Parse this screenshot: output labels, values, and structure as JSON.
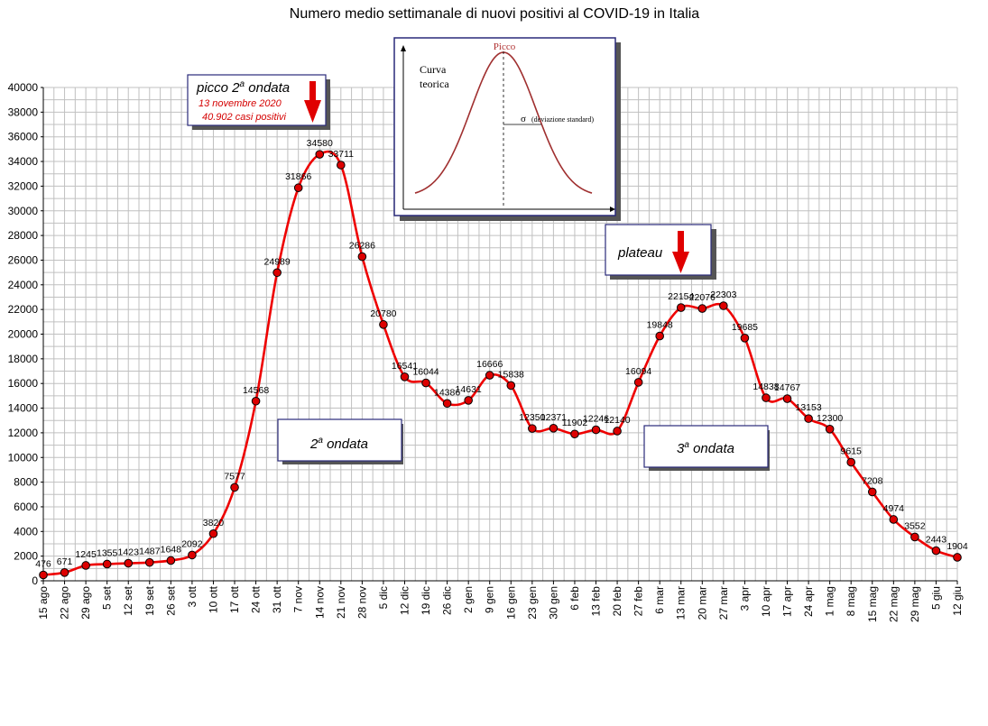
{
  "chart_data": {
    "type": "line",
    "title": "Numero medio settimanale di nuovi positivi al COVID-19 in Italia",
    "xlabel": "",
    "ylabel": "",
    "ylim": [
      0,
      40000
    ],
    "yticks": [
      0,
      2000,
      4000,
      6000,
      8000,
      10000,
      12000,
      14000,
      16000,
      18000,
      20000,
      22000,
      24000,
      26000,
      28000,
      30000,
      32000,
      34000,
      36000,
      38000,
      40000
    ],
    "grid": true,
    "categories": [
      "15 ago",
      "22 ago",
      "29 ago",
      "5 set",
      "12 set",
      "19 set",
      "26 set",
      "3 ott",
      "10 ott",
      "17 ott",
      "24 ott",
      "31 ott",
      "7 nov",
      "14 nov",
      "21 nov",
      "28 nov",
      "5 dic",
      "12 dic",
      "19 dic",
      "26 dic",
      "2 gen",
      "9 gen",
      "16 gen",
      "23 gen",
      "30 gen",
      "6 feb",
      "13 feb",
      "20 feb",
      "27 feb",
      "6 mar",
      "13 mar",
      "20 mar",
      "27 mar",
      "3 apr",
      "10 apr",
      "17 apr",
      "24 apr",
      "1 mag",
      "8 mag",
      "15 mag",
      "22 mag",
      "29 mag",
      "5 giu",
      "12 giu"
    ],
    "series": [
      {
        "color": "#ee0000",
        "values": [
          476,
          671,
          1245,
          1355,
          1423,
          1487,
          1648,
          2092,
          3820,
          7577,
          14568,
          24989,
          31866,
          34580,
          33711,
          26286,
          20780,
          16541,
          16044,
          14386,
          14631,
          16666,
          15838,
          12350,
          12371,
          11902,
          12246,
          12140,
          16094,
          19848,
          22154,
          22076,
          22303,
          19685,
          14838,
          14767,
          13153,
          12300,
          9615,
          7208,
          4974,
          3552,
          2443,
          1904
        ],
        "labels": [
          "476",
          "671",
          "1245",
          "1355",
          "1423",
          "1487",
          "1648",
          "2092",
          "3820",
          "7577",
          "14568",
          "24989",
          "31866",
          "34580",
          "33711",
          "26286",
          "20780",
          "16541",
          "16044",
          "14386",
          "14631",
          "16666",
          "15838",
          "12350",
          "12371",
          "11902",
          "12246",
          "12140",
          "16094",
          "19848",
          "22154",
          "22076",
          "22303",
          "19685",
          "14838",
          "14767",
          "13153",
          "12300",
          "9615",
          "7208",
          "4974",
          "3552",
          "2443",
          "1904"
        ]
      }
    ],
    "annotations": {
      "peak_box": {
        "title_main": "picco 2",
        "title_sup": "a",
        "title_rest": " ondata",
        "line1": "13 novembre 2020",
        "line2": "40.902 casi positivi"
      },
      "wave2_box": {
        "main": "2",
        "sup": "a",
        "rest": " ondata"
      },
      "wave3_box": {
        "main": "3",
        "sup": "a",
        "rest": " ondata"
      },
      "plateau_box": {
        "text": "plateau"
      },
      "inset": {
        "peak_label": "Picco",
        "curve_label_1": "Curva",
        "curve_label_2": "teorica",
        "sigma": "σ",
        "sigma_label": "(deviazione standard)"
      }
    }
  },
  "colors": {
    "line": "#ee0000",
    "marker_fill": "#dd0000",
    "grid": "#c0c0c0",
    "annotation_red": "#d40000",
    "inset_curve": "#a03030",
    "box_shadow": "#555555",
    "box_border": "#2a2a7a"
  }
}
